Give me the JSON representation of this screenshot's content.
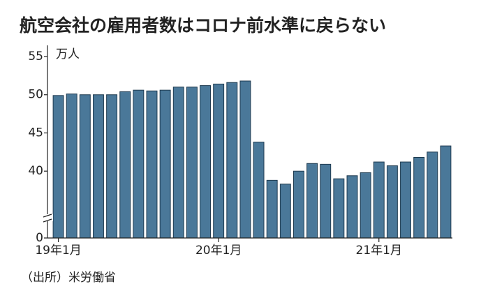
{
  "chart_data": {
    "type": "bar",
    "title": "航空会社の雇用者数はコロナ前水準に戻らない",
    "y_label": "万人",
    "source": "（出所）米労働省",
    "categories": [
      "19年1月",
      null,
      null,
      null,
      null,
      null,
      null,
      null,
      null,
      null,
      null,
      null,
      "20年1月",
      null,
      null,
      null,
      null,
      null,
      null,
      null,
      null,
      null,
      null,
      null,
      "21年1月",
      null,
      null,
      null,
      null,
      null
    ],
    "values": [
      49.9,
      50.1,
      50.0,
      50.0,
      50.0,
      50.4,
      50.6,
      50.5,
      50.6,
      51.0,
      51.0,
      51.2,
      51.4,
      51.6,
      51.8,
      43.8,
      38.8,
      38.3,
      40.0,
      41.0,
      40.9,
      39.0,
      39.4,
      39.8,
      41.2,
      40.7,
      41.2,
      41.8,
      42.5,
      43.3
    ],
    "color": "#4a7899",
    "ylim": [
      0,
      55
    ],
    "yticks": [
      0,
      40,
      45,
      50,
      55
    ],
    "axis_break": [
      0,
      36
    ]
  }
}
